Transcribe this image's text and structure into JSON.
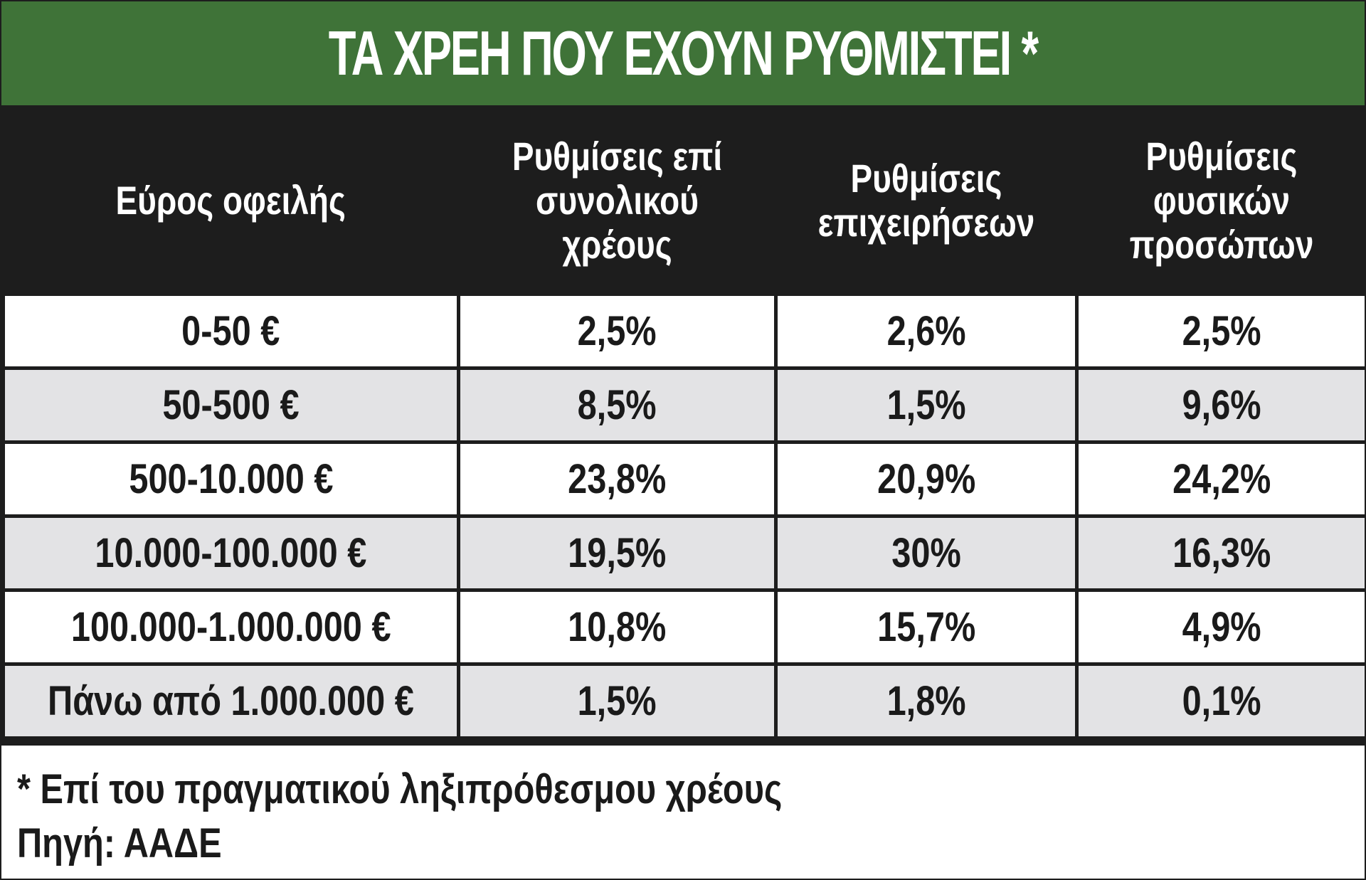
{
  "chart_data": {
    "type": "table",
    "title": "ΤΑ ΧΡΕΗ ΠΟΥ ΕΧΟΥΝ ΡΥΘΜΙΣΤΕΙ *",
    "columns": [
      "Εύρος οφειλής",
      "Ρυθμίσεις επί συνολικού χρέους",
      "Ρυθμίσεις επιχειρήσεων",
      "Ρυθμίσεις φυσικών προσώπων"
    ],
    "rows": [
      [
        "0-50 €",
        "2,5%",
        "2,6%",
        "2,5%"
      ],
      [
        "50-500 €",
        "8,5%",
        "1,5%",
        "9,6%"
      ],
      [
        "500-10.000 €",
        "23,8%",
        "20,9%",
        "24,2%"
      ],
      [
        "10.000-100.000 €",
        "19,5%",
        "30%",
        "16,3%"
      ],
      [
        "100.000-1.000.000 €",
        "10,8%",
        "15,7%",
        "4,9%"
      ],
      [
        "Πάνω από 1.000.000 €",
        "1,5%",
        "1,8%",
        "0,1%"
      ]
    ],
    "footnote": "* Επί του πραγματικού ληξιπρόθεσμου χρέους",
    "source": "Πηγή: ΑΑΔΕ"
  },
  "colors": {
    "title_bg": "#3f7338",
    "header_bg": "#1d1d1d",
    "row_alt_bg": "#e3e3e5"
  }
}
